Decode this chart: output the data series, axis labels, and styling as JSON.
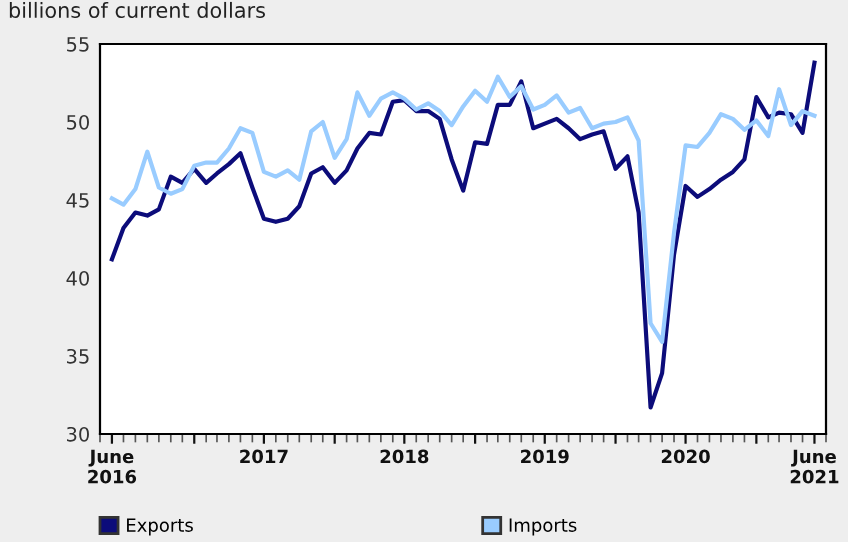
{
  "chart_data": {
    "type": "line",
    "ylabel": "billions of current dollars",
    "x": [
      "2016-06",
      "2016-07",
      "2016-08",
      "2016-09",
      "2016-10",
      "2016-11",
      "2016-12",
      "2017-01",
      "2017-02",
      "2017-03",
      "2017-04",
      "2017-05",
      "2017-06",
      "2017-07",
      "2017-08",
      "2017-09",
      "2017-10",
      "2017-11",
      "2017-12",
      "2018-01",
      "2018-02",
      "2018-03",
      "2018-04",
      "2018-05",
      "2018-06",
      "2018-07",
      "2018-08",
      "2018-09",
      "2018-10",
      "2018-11",
      "2018-12",
      "2019-01",
      "2019-02",
      "2019-03",
      "2019-04",
      "2019-05",
      "2019-06",
      "2019-07",
      "2019-08",
      "2019-09",
      "2019-10",
      "2019-11",
      "2019-12",
      "2020-01",
      "2020-02",
      "2020-03",
      "2020-04",
      "2020-05",
      "2020-06",
      "2020-07",
      "2020-08",
      "2020-09",
      "2020-10",
      "2020-11",
      "2020-12",
      "2021-01",
      "2021-02",
      "2021-03",
      "2021-04",
      "2021-05",
      "2021-06"
    ],
    "series": [
      {
        "name": "Exports",
        "color": "#0c0c7a",
        "values": [
          41.2,
          43.2,
          44.2,
          44.0,
          44.4,
          46.5,
          46.1,
          47.0,
          46.1,
          46.7,
          47.3,
          48.0,
          45.8,
          43.8,
          43.6,
          43.8,
          44.6,
          46.7,
          47.1,
          46.1,
          46.9,
          48.3,
          49.3,
          49.2,
          51.3,
          51.4,
          50.7,
          50.7,
          50.2,
          47.6,
          45.6,
          48.7,
          48.6,
          51.1,
          51.1,
          52.6,
          49.6,
          49.9,
          50.2,
          49.6,
          48.9,
          49.2,
          49.4,
          47.0,
          47.8,
          44.2,
          31.7,
          33.9,
          41.5,
          45.9,
          45.2,
          45.7,
          46.3,
          46.8,
          47.6,
          51.6,
          50.3,
          50.6,
          50.5,
          49.3,
          53.8
        ]
      },
      {
        "name": "Imports",
        "color": "#99ccff",
        "values": [
          45.1,
          44.7,
          45.7,
          48.1,
          45.8,
          45.4,
          45.7,
          47.2,
          47.4,
          47.4,
          48.3,
          49.6,
          49.3,
          46.8,
          46.5,
          46.9,
          46.3,
          49.4,
          50.0,
          47.7,
          48.9,
          51.9,
          50.4,
          51.5,
          51.9,
          51.5,
          50.8,
          51.2,
          50.7,
          49.8,
          51.0,
          52.0,
          51.3,
          52.9,
          51.6,
          52.3,
          50.8,
          51.1,
          51.7,
          50.6,
          50.9,
          49.6,
          49.9,
          50.0,
          50.3,
          48.8,
          37.1,
          35.9,
          42.9,
          48.5,
          48.4,
          49.3,
          50.5,
          50.2,
          49.5,
          50.1,
          49.1,
          52.1,
          49.8,
          50.7,
          50.4
        ]
      }
    ],
    "xlim": [
      "2016-05",
      "2021-07"
    ],
    "xticks": [
      {
        "value": "2016-06",
        "label": "June\n2016"
      },
      {
        "value": "2017-01",
        "label": null
      },
      {
        "value": "2017-07",
        "label": "2017"
      },
      {
        "value": "2018-01",
        "label": null
      },
      {
        "value": "2018-07",
        "label": "2018"
      },
      {
        "value": "2019-01",
        "label": null
      },
      {
        "value": "2019-07",
        "label": "2019"
      },
      {
        "value": "2020-01",
        "label": null
      },
      {
        "value": "2020-07",
        "label": "2020"
      },
      {
        "value": "2021-01",
        "label": null
      },
      {
        "value": "2021-06",
        "label": "June\n2021"
      }
    ],
    "ylim": [
      30,
      55
    ],
    "yticks": [
      30,
      35,
      40,
      45,
      50,
      55
    ],
    "grid": false,
    "legend": "bottom",
    "marker": "none",
    "line_style": "solid"
  }
}
